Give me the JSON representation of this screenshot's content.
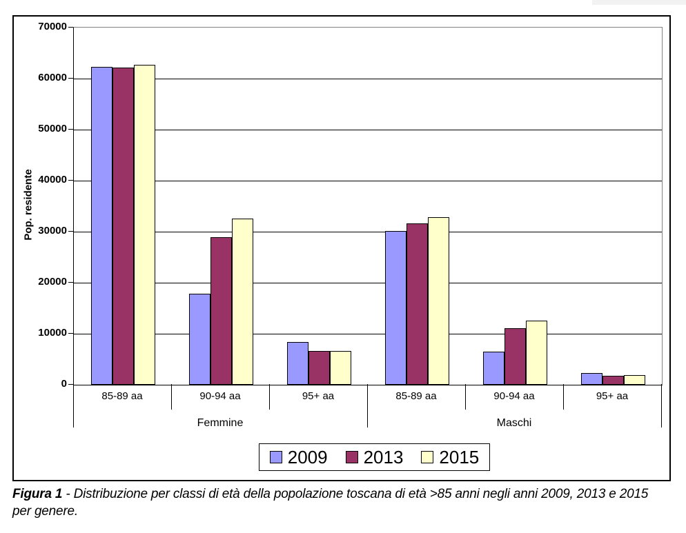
{
  "figure": {
    "caption": {
      "label": "Figura 1",
      "separator": " - ",
      "text": "Distribuzione per classi di età della popolazione toscana di età >85 anni negli anni 2009, 2013 e 2015 per genere."
    }
  },
  "chart_data": {
    "type": "bar",
    "title": "",
    "xlabel": "",
    "ylabel": "Pop. residente",
    "ylim": [
      0,
      70000
    ],
    "ytick_step": 10000,
    "ytick_labels": [
      "0",
      "10000",
      "20000",
      "30000",
      "40000",
      "50000",
      "60000",
      "70000"
    ],
    "grid": true,
    "gridline_color": "#000000",
    "plot_border_color": "#808080",
    "legend_position": "bottom",
    "group_labels": [
      "Femmine",
      "Maschi"
    ],
    "categories": [
      "85-89 aa",
      "90-94 aa",
      "95+ aa",
      "85-89 aa",
      "90-94 aa",
      "95+ aa"
    ],
    "series": [
      {
        "name": "2009",
        "color": "#9999FF",
        "values": [
          62300,
          17800,
          8400,
          30200,
          6500,
          2300
        ]
      },
      {
        "name": "2013",
        "color": "#993366",
        "values": [
          62100,
          28900,
          6600,
          31600,
          11100,
          1800
        ]
      },
      {
        "name": "2015",
        "color": "#FFFFCC",
        "values": [
          62700,
          32600,
          6600,
          32800,
          12500,
          1900
        ]
      }
    ]
  },
  "legend": {
    "items": [
      {
        "label": "2009",
        "color": "#9999FF"
      },
      {
        "label": "2013",
        "color": "#993366"
      },
      {
        "label": "2015",
        "color": "#FFFFCC"
      }
    ]
  }
}
